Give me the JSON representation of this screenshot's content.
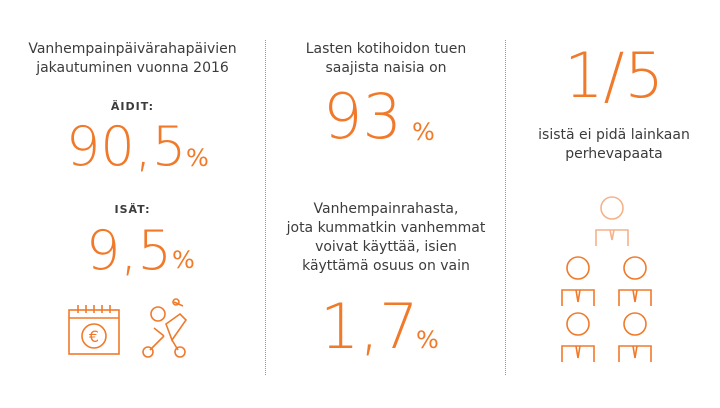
{
  "col1": {
    "heading_line1": "Vanhempainpäivärahapäivien",
    "heading_line2": "jakautuminen vuonna 2016",
    "mothers_label": "ÄIDIT:",
    "mothers_value": "90,5",
    "mothers_unit": "%",
    "fathers_label": "ISÄT:",
    "fathers_value": "9,5",
    "fathers_unit": "%",
    "calendar_symbol": "€",
    "icons": [
      "calendar-euro-icon",
      "stroller-icon"
    ]
  },
  "col2": {
    "heading_line1": "Lasten kotihoidon tuen",
    "heading_line2": "saajista naisia on",
    "women_value": "93",
    "women_unit": "%",
    "text_line1": "Vanhempainrahasta,",
    "text_line2": "jota kummatkin vanhemmat",
    "text_line3": "voivat käyttää, isien",
    "text_line4": "käyttämä osuus on vain",
    "fathers_share_value": "1,7",
    "fathers_share_unit": "%"
  },
  "col3": {
    "fraction": "1/5",
    "text_line1": "isistä ei pidä lainkaan",
    "text_line2": "perhevapaata",
    "icons": [
      "people-hierarchy-icon"
    ]
  },
  "colors": {
    "accent": "#f07a2a",
    "accent_light": "#f4b28a",
    "text": "#3c3c3c"
  }
}
